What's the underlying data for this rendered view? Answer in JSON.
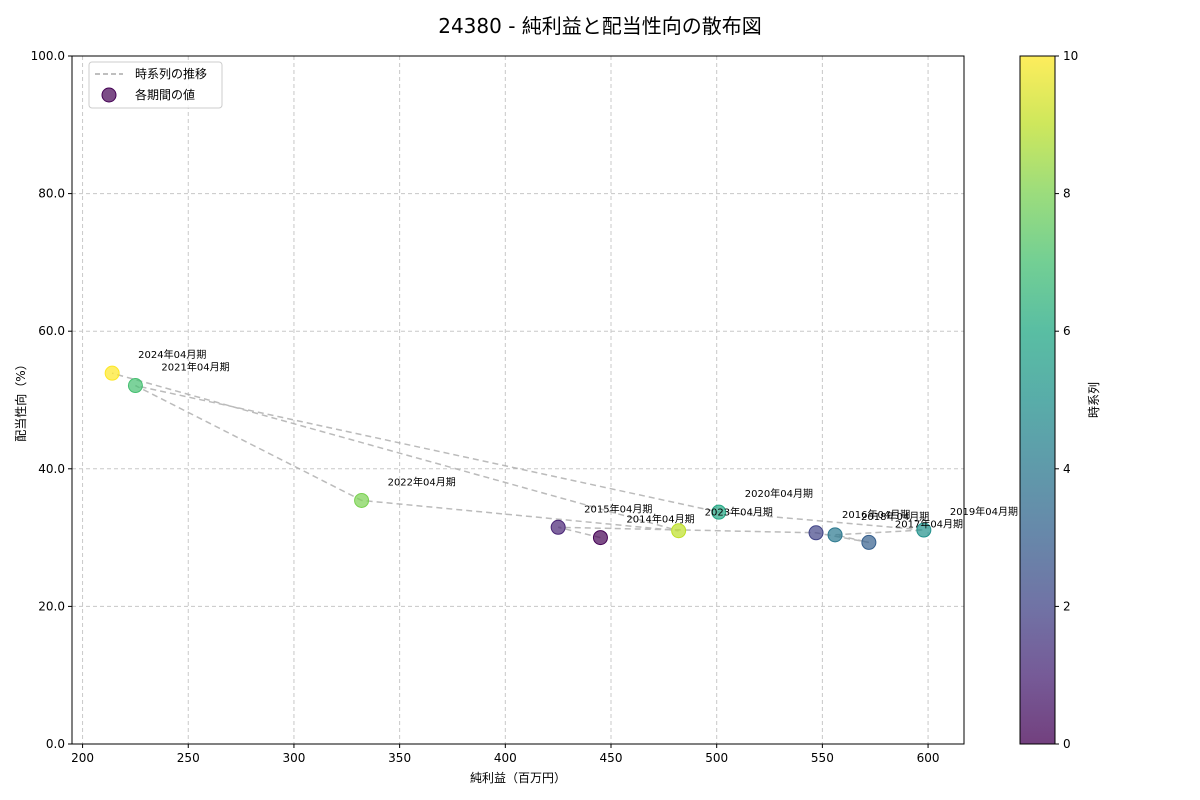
{
  "chart_data": {
    "type": "scatter",
    "title": "24380 - 純利益と配当性向の散布図",
    "xlabel": "純利益（百万円）",
    "ylabel": "配当性向（%）",
    "xlim": [
      195,
      617
    ],
    "ylim": [
      0,
      100
    ],
    "xticks": [
      "200",
      "250",
      "300",
      "350",
      "400",
      "450",
      "500",
      "550",
      "600"
    ],
    "yticks": [
      "0.0",
      "20.0",
      "40.0",
      "60.0",
      "80.0",
      "100.0"
    ],
    "grid": true,
    "legend_position": "top-left",
    "legend": {
      "line_label": "時系列の推移",
      "scatter_label": "各期間の値"
    },
    "colorbar": {
      "label": "時系列",
      "range": [
        0,
        10
      ],
      "ticks": [
        "0",
        "2",
        "4",
        "6",
        "8",
        "10"
      ],
      "colormap": "viridis"
    },
    "points": [
      {
        "label": "2014年04月期",
        "x": 445,
        "y": 30.0,
        "t": 0
      },
      {
        "label": "2015年04月期",
        "x": 425,
        "y": 31.5,
        "t": 1
      },
      {
        "label": "2016年04月期",
        "x": 547,
        "y": 30.7,
        "t": 2
      },
      {
        "label": "2017年04月期",
        "x": 572,
        "y": 29.3,
        "t": 3
      },
      {
        "label": "2018年04月期",
        "x": 556,
        "y": 30.4,
        "t": 4
      },
      {
        "label": "2019年04月期",
        "x": 598,
        "y": 31.1,
        "t": 5
      },
      {
        "label": "2020年04月期",
        "x": 501,
        "y": 33.7,
        "t": 6
      },
      {
        "label": "2021年04月期",
        "x": 225,
        "y": 52.1,
        "t": 7
      },
      {
        "label": "2022年04月期",
        "x": 332,
        "y": 35.4,
        "t": 8
      },
      {
        "label": "2023年04月期",
        "x": 482,
        "y": 31.0,
        "t": 9
      },
      {
        "label": "2024年04月期",
        "x": 214,
        "y": 53.9,
        "t": 10
      }
    ]
  }
}
